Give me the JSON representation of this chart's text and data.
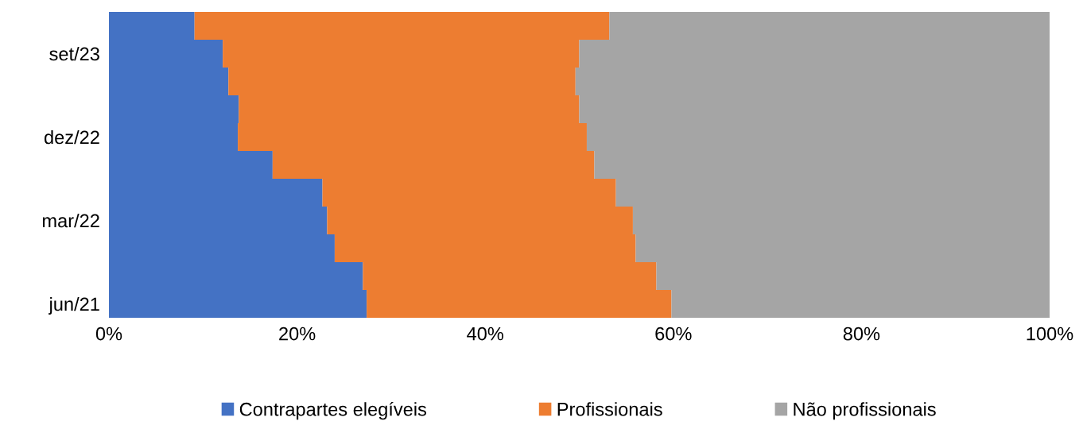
{
  "chart_data": {
    "type": "bar",
    "orientation": "horizontal",
    "stacked": true,
    "categories": [
      null,
      "set/23",
      null,
      null,
      "dez/22",
      null,
      null,
      "mar/22",
      null,
      null,
      "jun/21"
    ],
    "series": [
      {
        "name": "Contrapartes elegíveis",
        "color": "#4472c4",
        "values": [
          9.1,
          12.1,
          12.7,
          13.8,
          13.7,
          17.4,
          22.7,
          23.2,
          24.0,
          27.0,
          27.4
        ]
      },
      {
        "name": "Profissionais",
        "color": "#ed7d31",
        "values": [
          44.1,
          37.9,
          36.9,
          36.2,
          37.1,
          34.2,
          31.2,
          32.5,
          32.0,
          31.2,
          32.4
        ]
      },
      {
        "name": "Não profissionais",
        "color": "#a5a5a5",
        "values": [
          46.8,
          50.0,
          50.4,
          50.0,
          49.2,
          48.4,
          46.1,
          44.3,
          44.0,
          41.8,
          40.2
        ]
      }
    ],
    "xlim": [
      0,
      100
    ],
    "xticks": [
      {
        "value": 0,
        "label": "0%"
      },
      {
        "value": 20,
        "label": "20%"
      },
      {
        "value": 40,
        "label": "40%"
      },
      {
        "value": 60,
        "label": "60%"
      },
      {
        "value": 80,
        "label": "80%"
      },
      {
        "value": 100,
        "label": "100%"
      }
    ],
    "legend": "bottom",
    "grid": false
  }
}
